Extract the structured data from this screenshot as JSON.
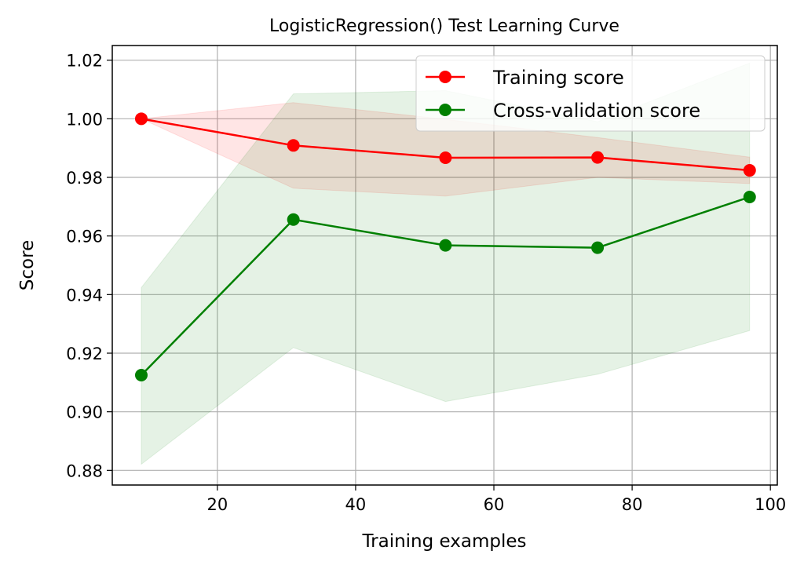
{
  "chart_data": {
    "type": "line",
    "title": "LogisticRegression() Test Learning Curve",
    "xlabel": "Training examples",
    "ylabel": "Score",
    "xlim": [
      4.8,
      101
    ],
    "ylim": [
      0.875,
      1.025
    ],
    "xticks": [
      20,
      40,
      60,
      80,
      100
    ],
    "xtick_labels": [
      "20",
      "40",
      "60",
      "80",
      "100"
    ],
    "yticks": [
      0.88,
      0.9,
      0.92,
      0.94,
      0.96,
      0.98,
      1.0,
      1.02
    ],
    "ytick_labels": [
      "0.88",
      "0.90",
      "0.92",
      "0.94",
      "0.96",
      "0.98",
      "1.00",
      "1.02"
    ],
    "grid": true,
    "legend_placement": "upper right",
    "x": [
      9,
      31,
      53,
      75,
      97
    ],
    "series": [
      {
        "name": "Training score",
        "color": "#ff0000",
        "values": [
          1.0,
          0.9909,
          0.9867,
          0.9868,
          0.9824
        ],
        "band_lower": [
          1.0,
          0.9763,
          0.9736,
          0.98,
          0.9779
        ],
        "band_upper": [
          1.0,
          1.0055,
          0.9998,
          0.9936,
          0.9869
        ]
      },
      {
        "name": "Cross-validation score",
        "color": "#008000",
        "values": [
          0.9125,
          0.9656,
          0.9568,
          0.956,
          0.9733
        ],
        "band_lower": [
          0.8821,
          0.9219,
          0.9035,
          0.9128,
          0.9277
        ],
        "band_upper": [
          0.9424,
          1.0085,
          1.0096,
          0.999,
          1.019
        ]
      }
    ]
  }
}
